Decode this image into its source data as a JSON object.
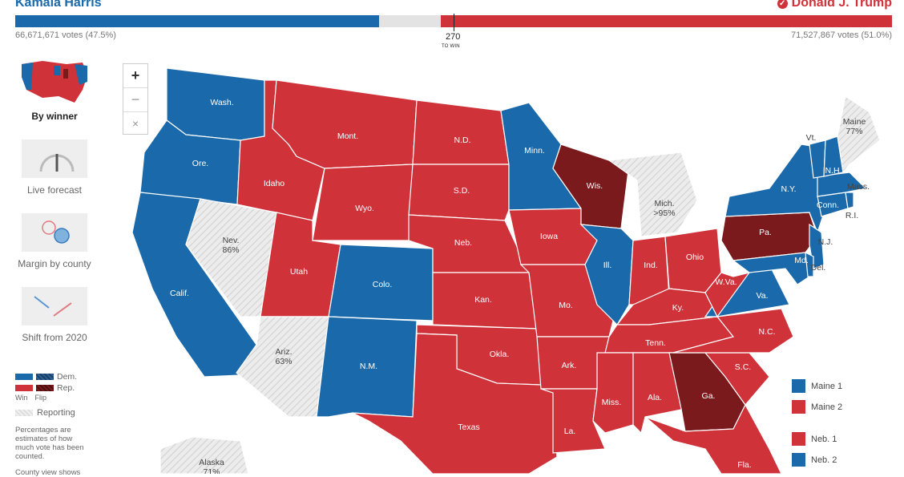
{
  "header": {
    "dem_name": "Kamala Harris",
    "rep_name": "Donald J. Trump",
    "dem_votes": "66,671,671 votes (47.5%)",
    "rep_votes": "71,527,867 votes (51.0%)",
    "target_number": "270",
    "target_label": "TO WIN",
    "dem_share": 0.415,
    "rep_share": 0.515
  },
  "colors": {
    "dem": "#1a6aab",
    "rep": "#d0323a",
    "flip": "#7a1a1d",
    "reporting": "#e6e6e6"
  },
  "sidebar": {
    "items": [
      {
        "label": "By winner"
      },
      {
        "label": "Live forecast"
      },
      {
        "label": "Margin by county"
      },
      {
        "label": "Shift from 2020"
      }
    ]
  },
  "zoom": {
    "in": "+",
    "out": "−",
    "reset": "×"
  },
  "legend": {
    "dem": "Dem.",
    "rep": "Rep.",
    "win": "Win",
    "flip": "Flip",
    "reporting": "Reporting",
    "note": "Percentages are estimates of how much vote has been counted.",
    "note2": "County view shows"
  },
  "districts": [
    {
      "label": "Maine 1",
      "party": "dem"
    },
    {
      "label": "Maine 2",
      "party": "rep"
    },
    {
      "label": "Neb. 1",
      "party": "rep"
    },
    {
      "label": "Neb. 2",
      "party": "dem"
    }
  ],
  "states": {
    "wash": "Wash.",
    "ore": "Ore.",
    "calif": "Calif.",
    "idaho": "Idaho",
    "nev": "Nev.",
    "nev_pct": "86%",
    "utah": "Utah",
    "ariz": "Ariz.",
    "ariz_pct": "63%",
    "mont": "Mont.",
    "wyo": "Wyo.",
    "colo": "Colo.",
    "nm": "N.M.",
    "nd": "N.D.",
    "sd": "S.D.",
    "neb": "Neb.",
    "kan": "Kan.",
    "okla": "Okla.",
    "texas": "Texas",
    "minn": "Minn.",
    "iowa": "Iowa",
    "mo": "Mo.",
    "ark": "Ark.",
    "la": "La.",
    "wis": "Wis.",
    "ill": "Ill.",
    "mich": "Mich.",
    "mich_pct": ">95%",
    "ind": "Ind.",
    "ohio": "Ohio",
    "ky": "Ky.",
    "tenn": "Tenn.",
    "miss": "Miss.",
    "ala": "Ala.",
    "ga": "Ga.",
    "fla": "Fla.",
    "sc": "S.C.",
    "nc": "N.C.",
    "va": "Va.",
    "wva": "W.Va.",
    "pa": "Pa.",
    "ny": "N.Y.",
    "nj": "N.J.",
    "md": "Md.",
    "del": "Del.",
    "conn": "Conn.",
    "ri": "R.I.",
    "mass": "Mass.",
    "vt": "Vt.",
    "nh": "N.H.",
    "maine": "Maine",
    "maine_pct": "77%",
    "alaska": "Alaska",
    "alaska_pct": "71%"
  }
}
